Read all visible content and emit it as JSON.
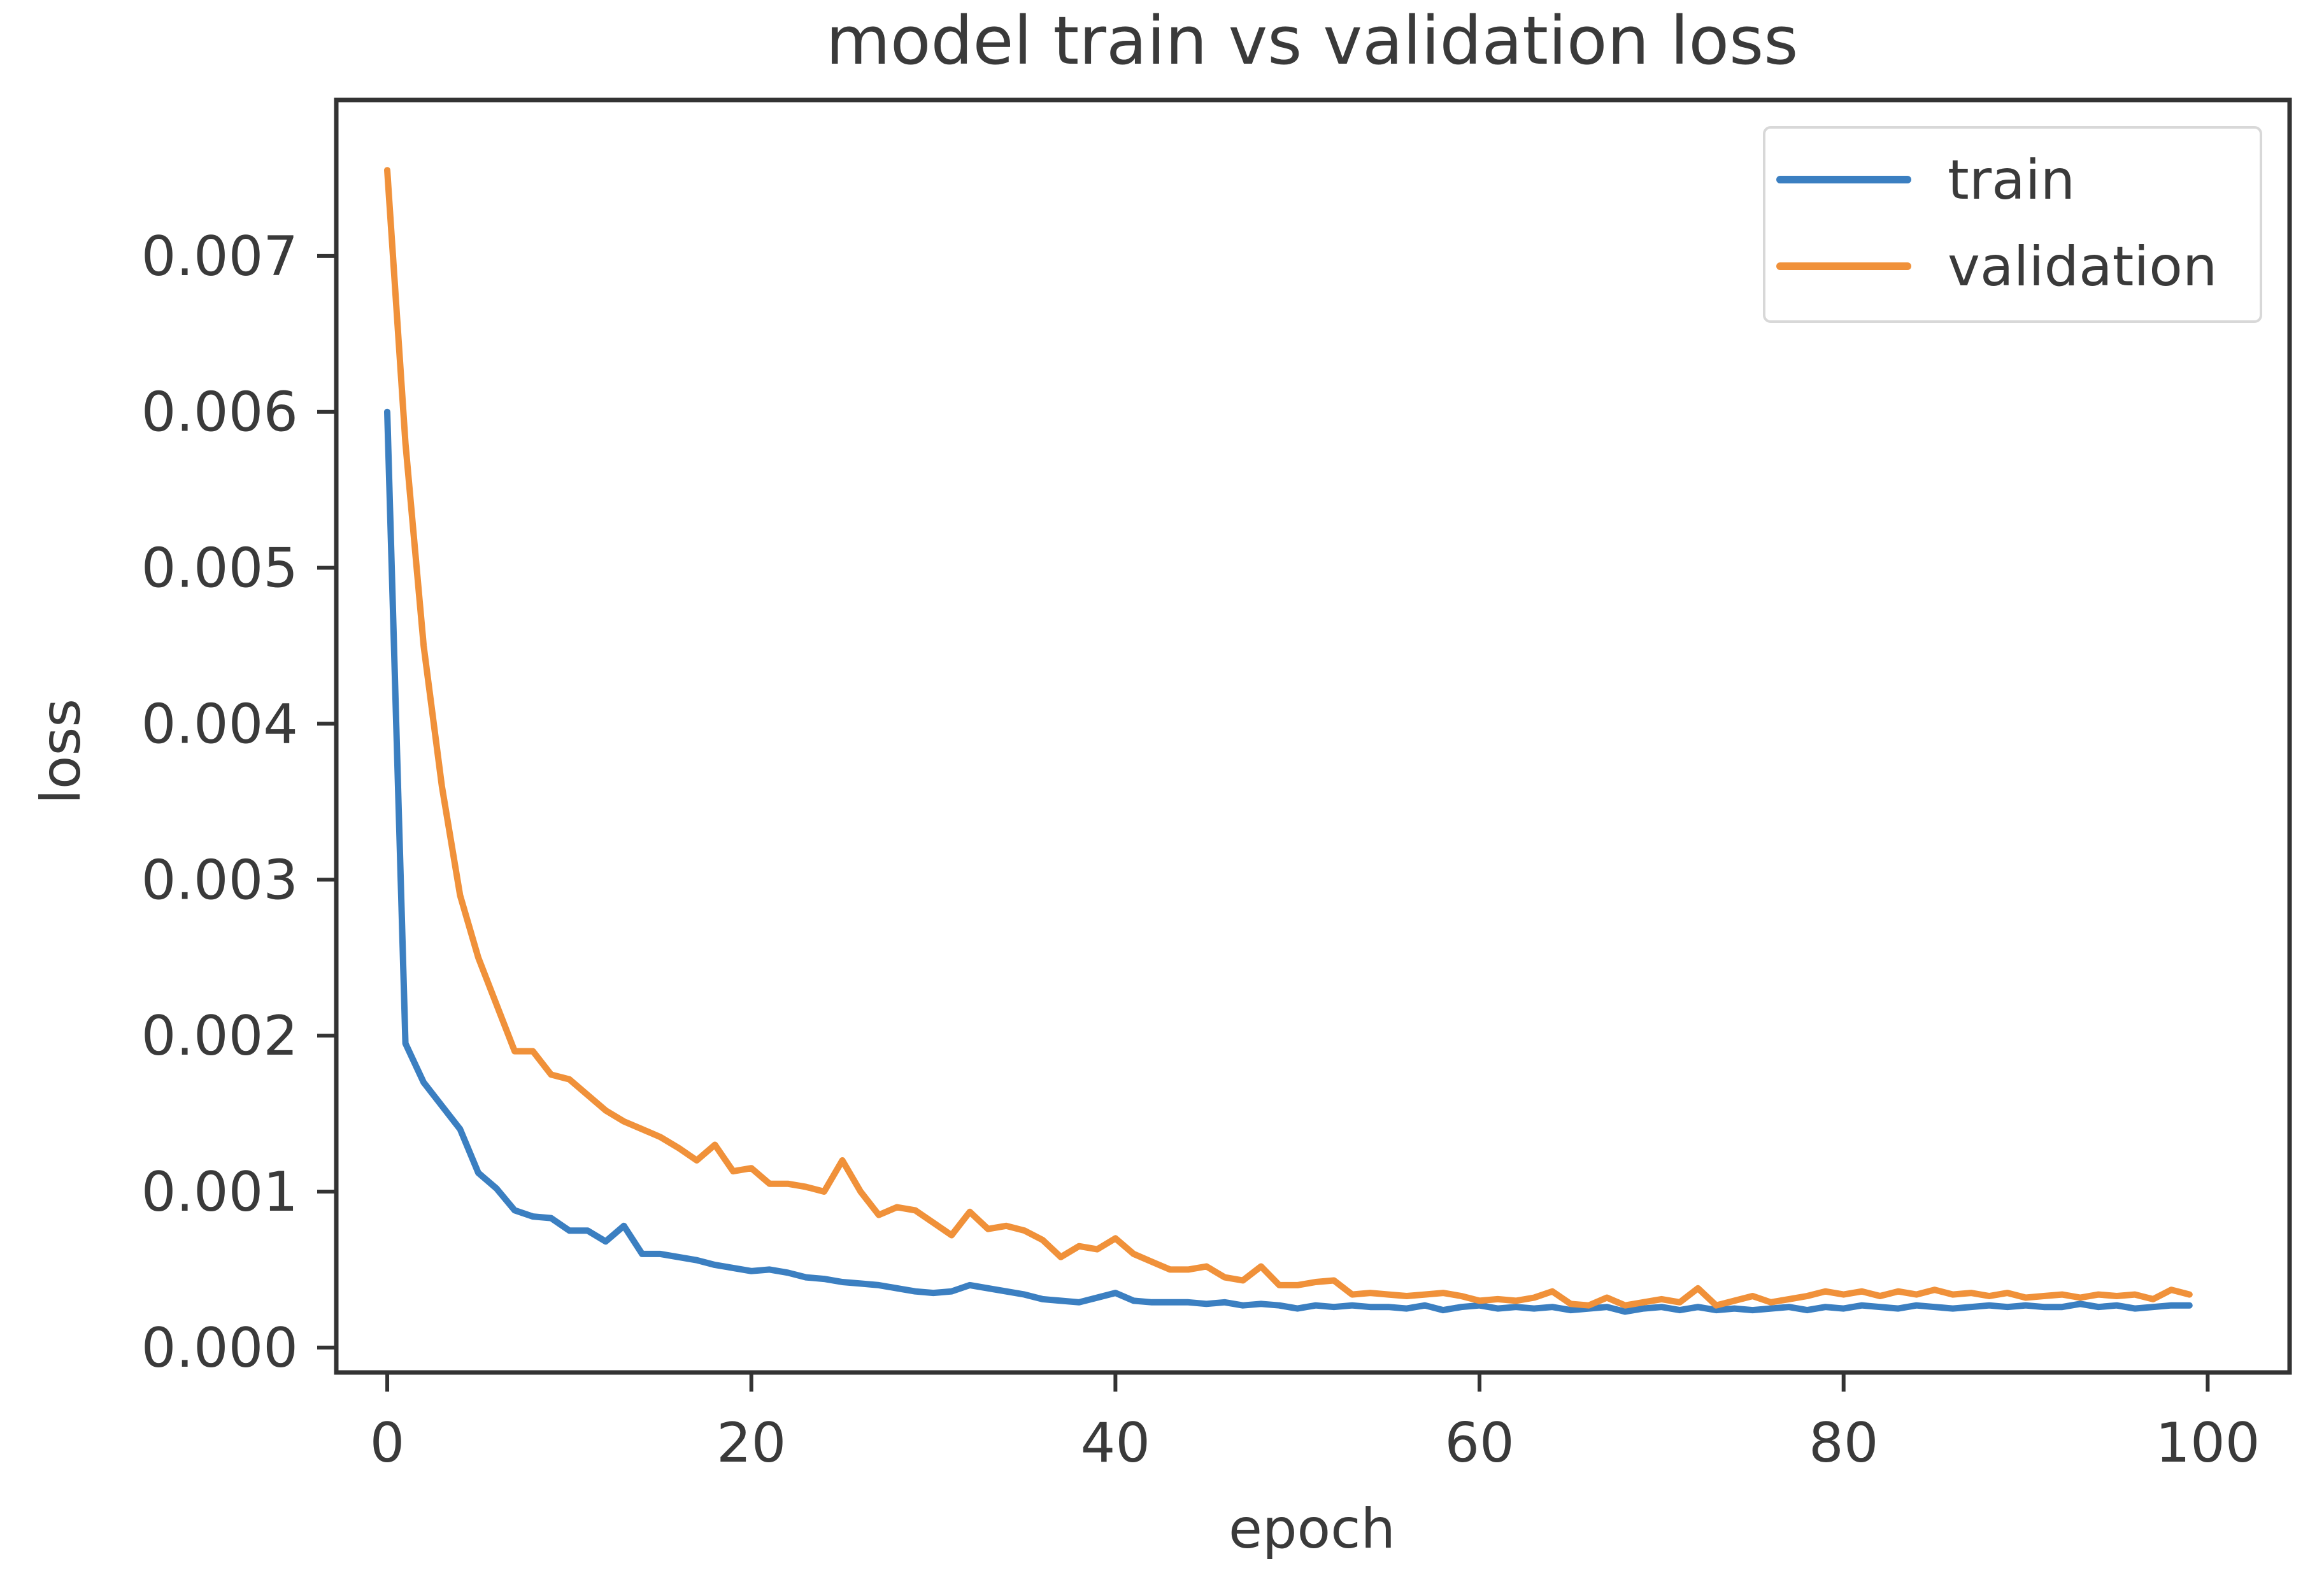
{
  "chart_data": {
    "type": "line",
    "title": "model train vs validation loss",
    "xlabel": "epoch",
    "ylabel": "loss",
    "xlim": [
      -2.8,
      104.5
    ],
    "ylim": [
      -0.00016,
      0.008
    ],
    "xticks": [
      0,
      20,
      40,
      60,
      80,
      100
    ],
    "xtick_labels": [
      "0",
      "20",
      "40",
      "60",
      "80",
      "100"
    ],
    "yticks": [
      0,
      0.001,
      0.002,
      0.003,
      0.004,
      0.005,
      0.006,
      0.007
    ],
    "ytick_labels": [
      "0.000",
      "0.001",
      "0.002",
      "0.003",
      "0.004",
      "0.005",
      "0.006",
      "0.007"
    ],
    "grid": false,
    "legend_position": "top-right",
    "x": [
      0,
      1,
      2,
      3,
      4,
      5,
      6,
      7,
      8,
      9,
      10,
      11,
      12,
      13,
      14,
      15,
      16,
      17,
      18,
      19,
      20,
      21,
      22,
      23,
      24,
      25,
      26,
      27,
      28,
      29,
      30,
      31,
      32,
      33,
      34,
      35,
      36,
      37,
      38,
      39,
      40,
      41,
      42,
      43,
      44,
      45,
      46,
      47,
      48,
      49,
      50,
      51,
      52,
      53,
      54,
      55,
      56,
      57,
      58,
      59,
      60,
      61,
      62,
      63,
      64,
      65,
      66,
      67,
      68,
      69,
      70,
      71,
      72,
      73,
      74,
      75,
      76,
      77,
      78,
      79,
      80,
      81,
      82,
      83,
      84,
      85,
      86,
      87,
      88,
      89,
      90,
      91,
      92,
      93,
      94,
      95,
      96,
      97,
      98,
      99
    ],
    "series": [
      {
        "name": "train",
        "color": "#3b7fc1",
        "values": [
          0.006,
          0.00195,
          0.0017,
          0.00155,
          0.0014,
          0.00112,
          0.00102,
          0.00088,
          0.00084,
          0.00083,
          0.00075,
          0.00075,
          0.00068,
          0.00078,
          0.0006,
          0.0006,
          0.00058,
          0.00056,
          0.00053,
          0.00051,
          0.00049,
          0.0005,
          0.00048,
          0.00045,
          0.00044,
          0.00042,
          0.00041,
          0.0004,
          0.00038,
          0.00036,
          0.00035,
          0.00036,
          0.0004,
          0.00038,
          0.00036,
          0.00034,
          0.00031,
          0.0003,
          0.00029,
          0.00032,
          0.00035,
          0.0003,
          0.00029,
          0.00029,
          0.00029,
          0.00028,
          0.00029,
          0.00027,
          0.00028,
          0.00027,
          0.00025,
          0.00027,
          0.00026,
          0.00027,
          0.00026,
          0.00026,
          0.00025,
          0.00027,
          0.00024,
          0.00026,
          0.00027,
          0.00025,
          0.00026,
          0.00025,
          0.00026,
          0.00024,
          0.00025,
          0.00026,
          0.00023,
          0.00025,
          0.00026,
          0.00024,
          0.00026,
          0.00024,
          0.00025,
          0.00024,
          0.00025,
          0.00026,
          0.00024,
          0.00026,
          0.00025,
          0.00027,
          0.00026,
          0.00025,
          0.00027,
          0.00026,
          0.00025,
          0.00026,
          0.00027,
          0.00026,
          0.00027,
          0.00026,
          0.00026,
          0.00028,
          0.00026,
          0.00027,
          0.00025,
          0.00026,
          0.00027,
          0.00027
        ]
      },
      {
        "name": "validation",
        "color": "#f0913a",
        "values": [
          0.00755,
          0.0058,
          0.0045,
          0.0036,
          0.0029,
          0.0025,
          0.0022,
          0.0019,
          0.0019,
          0.00175,
          0.00172,
          0.00162,
          0.00152,
          0.00145,
          0.0014,
          0.00135,
          0.00128,
          0.0012,
          0.0013,
          0.00113,
          0.00115,
          0.00105,
          0.00105,
          0.00103,
          0.001,
          0.0012,
          0.001,
          0.00085,
          0.0009,
          0.00088,
          0.0008,
          0.00072,
          0.00087,
          0.00076,
          0.00078,
          0.00075,
          0.00069,
          0.00058,
          0.00065,
          0.00063,
          0.0007,
          0.0006,
          0.00055,
          0.0005,
          0.0005,
          0.00052,
          0.00045,
          0.00043,
          0.00052,
          0.0004,
          0.0004,
          0.00042,
          0.00043,
          0.00034,
          0.00035,
          0.00034,
          0.00033,
          0.00034,
          0.00035,
          0.00033,
          0.0003,
          0.00031,
          0.0003,
          0.00032,
          0.00036,
          0.00028,
          0.00027,
          0.00032,
          0.00027,
          0.00029,
          0.00031,
          0.00029,
          0.00038,
          0.00027,
          0.0003,
          0.00033,
          0.00029,
          0.00031,
          0.00033,
          0.00036,
          0.00034,
          0.00036,
          0.00033,
          0.00036,
          0.00034,
          0.00037,
          0.00034,
          0.00035,
          0.00033,
          0.00035,
          0.00032,
          0.00033,
          0.00034,
          0.00032,
          0.00034,
          0.00033,
          0.00034,
          0.00031,
          0.00037,
          0.00034
        ]
      }
    ]
  }
}
